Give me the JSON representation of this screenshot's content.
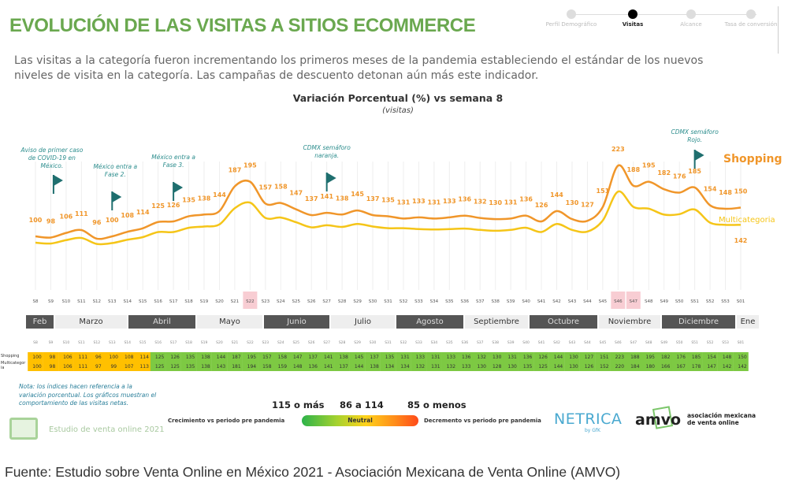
{
  "header": {
    "title": "EVOLUCIÓN DE LAS VISITAS A SITIOS ECOMMERCE",
    "stepper": [
      {
        "label": "Perfil Demográfico",
        "active": false
      },
      {
        "label": "Visitas",
        "active": true
      },
      {
        "label": "Alcance",
        "active": false
      },
      {
        "label": "Tasa de conversión",
        "active": false
      }
    ],
    "subtitle": "Las visitas a la categoría fueron incrementando los primeros meses de la pandemia estableciendo el estándar de los nuevos niveles de visita en la categoría. Las campañas de descuento detonan aún más este indicador."
  },
  "chart_data": {
    "type": "line",
    "title": "Variación Porcentual (%) vs semana 8",
    "subtitle": "(visitas)",
    "categories": [
      "S8",
      "S9",
      "S10",
      "S11",
      "S12",
      "S13",
      "S14",
      "S15",
      "S16",
      "S17",
      "S18",
      "S19",
      "S20",
      "S21",
      "S22",
      "S23",
      "S24",
      "S25",
      "S26",
      "S27",
      "S28",
      "S29",
      "S30",
      "S31",
      "S32",
      "S33",
      "S34",
      "S35",
      "S36",
      "S37",
      "S38",
      "S39",
      "S40",
      "S41",
      "S42",
      "S43",
      "S44",
      "S45",
      "S46",
      "S47",
      "S48",
      "S49",
      "S50",
      "S51",
      "S52",
      "S53",
      "S01"
    ],
    "series": [
      {
        "name": "Shopping",
        "color": "#f0962a",
        "values": [
          100,
          98,
          106,
          111,
          96,
          100,
          108,
          114,
          125,
          126,
          135,
          138,
          144,
          187,
          195,
          157,
          158,
          147,
          137,
          141,
          138,
          145,
          137,
          135,
          131,
          133,
          131,
          133,
          136,
          132,
          130,
          131,
          136,
          126,
          144,
          130,
          127,
          151,
          223,
          188,
          195,
          182,
          176,
          185,
          154,
          148,
          150
        ]
      },
      {
        "name": "Multicategoria",
        "color": "#f5c518",
        "values": [
          100,
          98,
          106,
          111,
          97,
          99,
          107,
          113,
          125,
          125,
          135,
          138,
          143,
          181,
          194,
          158,
          159,
          148,
          136,
          141,
          137,
          144,
          138,
          134,
          134,
          132,
          131,
          132,
          133,
          130,
          128,
          130,
          135,
          125,
          144,
          130,
          126,
          152,
          220,
          184,
          180,
          166,
          167,
          178,
          147,
          142,
          142
        ]
      }
    ],
    "end_label_multicategoria": "142",
    "annotations": [
      {
        "week": "S10",
        "text": "Aviso de primer caso de COVID-19 en México."
      },
      {
        "week": "S13",
        "text": "México entra a Fase 2."
      },
      {
        "week": "S17",
        "text": "México entra a Fase 3."
      },
      {
        "week": "S27",
        "text": "CDMX semáforo naranja."
      },
      {
        "week": "S51",
        "text": "CDMX semáforo Rojo."
      }
    ],
    "highlighted_weeks": [
      "S22",
      "S46",
      "S47"
    ],
    "grid": "vertical"
  },
  "months": [
    {
      "label": "Feb",
      "dark": true
    },
    {
      "label": "Marzo",
      "dark": false
    },
    {
      "label": "Abril",
      "dark": true
    },
    {
      "label": "Mayo",
      "dark": false
    },
    {
      "label": "Junio",
      "dark": true
    },
    {
      "label": "Julio",
      "dark": false
    },
    {
      "label": "Agosto",
      "dark": true
    },
    {
      "label": "Septiembre",
      "dark": false
    },
    {
      "label": "Octubre",
      "dark": true
    },
    {
      "label": "Noviembre",
      "dark": false
    },
    {
      "label": "Diciembre",
      "dark": true
    },
    {
      "label": "Ene",
      "dark": false
    }
  ],
  "table": {
    "row_labels": [
      "Shopping",
      "Multicategoria"
    ],
    "colors": {
      "neutral": "#ffc000",
      "growth": "#7dc943"
    }
  },
  "note": "Nota: los índices hacen referencia a la variación porcentual. Los gráficos muestran el comportamiento de las visitas netas.",
  "study": "Estudio de venta online 2021",
  "legend": {
    "high": "115 o más",
    "mid": "86 a 114",
    "low": "85 o menos",
    "neutral": "Neutral",
    "growth_text": "Crecimiento vs periodo pre pandemia",
    "decline_text": "Decremento vs periodo pre pandemia"
  },
  "logos": {
    "netrica": "NETRICA",
    "netrica_sub": "by GfK",
    "amvo": "amvo",
    "amvo_text": "asociación mexicana de venta online"
  },
  "caption": "Fuente: Estudio sobre Venta Online en México 2021 - Asociación Mexicana de Venta Online (AMVO)"
}
